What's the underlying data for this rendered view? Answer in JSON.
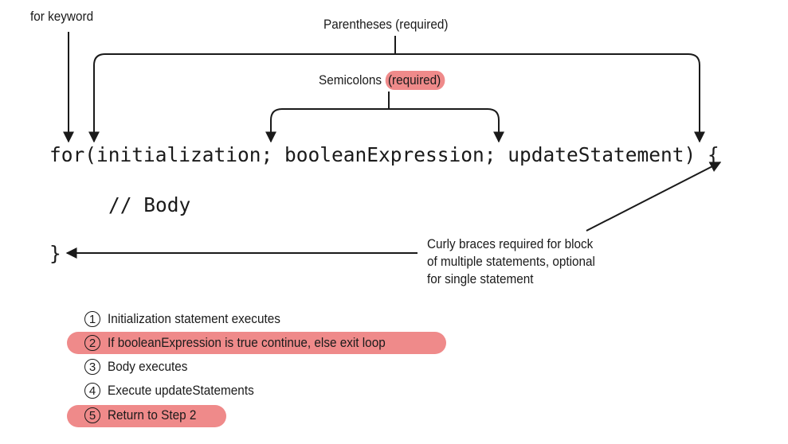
{
  "annotations": {
    "for_keyword": "for keyword",
    "parentheses": "Parentheses (required)",
    "semicolons": "Semicolons",
    "semicolons_required": "(required)",
    "curly_braces_line1": "Curly braces required for block",
    "curly_braces_line2": "of multiple statements, optional",
    "curly_braces_line3": "for single statement"
  },
  "code": {
    "for_line": "for(initialization; booleanExpression; updateStatement) {",
    "body_comment": "// Body",
    "closing_brace": "}"
  },
  "steps": [
    {
      "number": "1",
      "text": "Initialization statement executes",
      "highlighted": false
    },
    {
      "number": "2",
      "text": "If booleanExpression is true continue, else exit loop",
      "highlighted": true
    },
    {
      "number": "3",
      "text": "Body executes",
      "highlighted": false
    },
    {
      "number": "4",
      "text": "Execute updateStatements",
      "highlighted": false
    },
    {
      "number": "5",
      "text": "Return to Step 2",
      "highlighted": true
    }
  ],
  "colors": {
    "highlight": "#ef8a8a",
    "ink": "#1a1a1a"
  }
}
